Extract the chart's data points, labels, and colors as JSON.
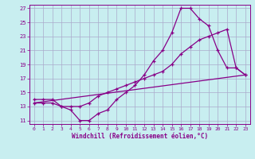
{
  "xlabel": "Windchill (Refroidissement éolien,°C)",
  "bg_color": "#c8eef0",
  "grid_color": "#aaaacc",
  "line_color": "#880088",
  "xlim": [
    -0.5,
    23.5
  ],
  "ylim": [
    10.5,
    27.5
  ],
  "xticks": [
    0,
    1,
    2,
    3,
    4,
    5,
    6,
    7,
    8,
    9,
    10,
    11,
    12,
    13,
    14,
    15,
    16,
    17,
    18,
    19,
    20,
    21,
    22,
    23
  ],
  "yticks": [
    11,
    13,
    15,
    17,
    19,
    21,
    23,
    25,
    27
  ],
  "line1_x": [
    0,
    1,
    2,
    3,
    4,
    5,
    6,
    7,
    8,
    9,
    10,
    11,
    12,
    13,
    14,
    15,
    16,
    17,
    18,
    19,
    20,
    21,
    22,
    23
  ],
  "line1_y": [
    14,
    14,
    14,
    13,
    12.5,
    11,
    11,
    12,
    12.5,
    14,
    15,
    16,
    17.5,
    19.5,
    21,
    23.5,
    27,
    27,
    25.5,
    24.5,
    21,
    18.5,
    18.5,
    17.5
  ],
  "line2_x": [
    0,
    1,
    2,
    3,
    4,
    5,
    6,
    7,
    8,
    9,
    10,
    11,
    12,
    13,
    14,
    15,
    16,
    17,
    18,
    19,
    20,
    21,
    22,
    23
  ],
  "line2_y": [
    13.5,
    13.5,
    13.5,
    13,
    13,
    13,
    13.5,
    14.5,
    15,
    15.5,
    16,
    16.5,
    17,
    17.5,
    18,
    19,
    20.5,
    21.5,
    22.5,
    23,
    23.5,
    24,
    18.5,
    17.5
  ],
  "line3_x": [
    0,
    23
  ],
  "line3_y": [
    13.5,
    17.5
  ]
}
